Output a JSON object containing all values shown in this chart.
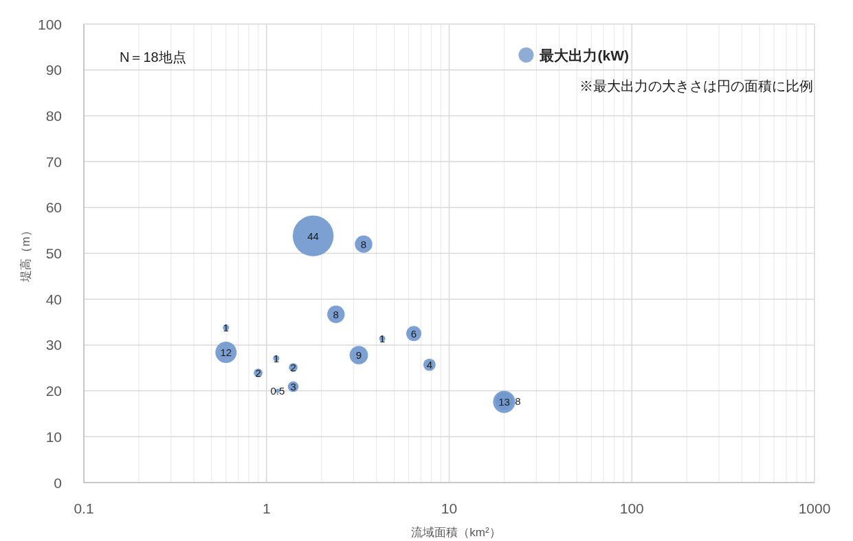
{
  "chart_data": {
    "type": "bubble",
    "xlabel": "流域面積（km²）",
    "ylabel": "堤高（m）",
    "log": "x",
    "xlim": [
      0.1,
      1000
    ],
    "xticks": [
      0.1,
      1,
      10,
      100,
      1000
    ],
    "ylim": [
      0,
      100
    ],
    "yticks": [
      0,
      10,
      20,
      30,
      40,
      50,
      60,
      70,
      80,
      90,
      100
    ],
    "grid": true,
    "legend": "top right",
    "annotations": [
      "N＝18地点",
      "※最大出力の大きさは円の面積に比例"
    ],
    "series": [
      {
        "name": "最大出力(kW)",
        "color": "#7098cd",
        "x": [
          0.6,
          0.6,
          0.9,
          1.13,
          1.15,
          1.4,
          1.4,
          1.8,
          2.4,
          3.2,
          3.4,
          4.3,
          6.4,
          7.8,
          20,
          20
        ],
        "values": [
          33.8,
          28.4,
          23.9,
          27.1,
          20.0,
          25.1,
          20.9,
          53.8,
          36.7,
          27.8,
          52.0,
          31.4,
          32.5,
          25.7,
          17.6,
          17.8
        ],
        "sizes": [
          1,
          12,
          2,
          1,
          0.5,
          2,
          3,
          44,
          8,
          9,
          8,
          1,
          6,
          4,
          13,
          8
        ],
        "value_labels": [
          "1",
          "12",
          "2",
          "1",
          "0.5",
          "2",
          "3",
          "44",
          "8",
          "9",
          "8",
          "1",
          "6",
          "4",
          "13",
          "8"
        ]
      }
    ]
  }
}
